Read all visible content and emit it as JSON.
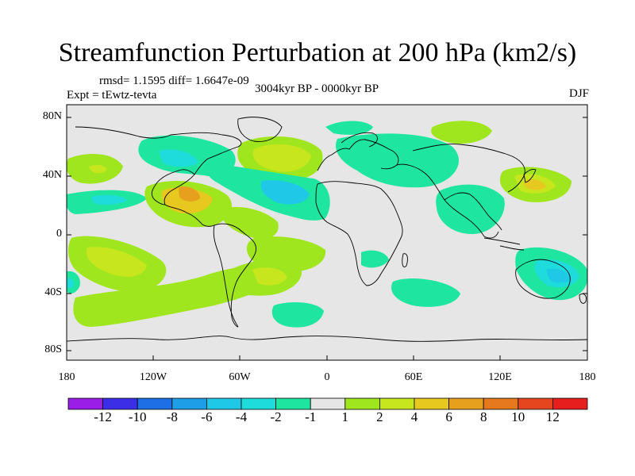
{
  "title": "Streamfunction Perturbation at 200 hPa (km2/s)",
  "stats": "rmsd= 1.1595 diff= 1.6647e-09",
  "experiment": "Expt = tEwtz-tevta",
  "period": "3004kyr BP - 0000kyr BP",
  "season": "DJF",
  "map": {
    "y_labels": [
      "80N",
      "40N",
      "0",
      "40S",
      "80S"
    ],
    "x_labels": [
      "180",
      "120W",
      "60W",
      "0",
      "60E",
      "120E",
      "180"
    ]
  },
  "colorbar": {
    "labels": [
      "-12",
      "-10",
      "-8",
      "-6",
      "-4",
      "-2",
      "-1",
      "1",
      "2",
      "4",
      "6",
      "8",
      "10",
      "12"
    ],
    "colors": [
      "#9a1ee6",
      "#3b2ee6",
      "#1e6ee6",
      "#1e9ee6",
      "#1ec8e6",
      "#1edcdc",
      "#1ee6a0",
      "#e6e6e6",
      "#a0e61e",
      "#c8e61e",
      "#e6c81e",
      "#e6a01e",
      "#e6781e",
      "#e6461e",
      "#e61e1e"
    ]
  },
  "palette": {
    "ocean_bg": "#e6e6e6",
    "neg_light": "#1ee6a0",
    "neg_mid": "#1edcdc",
    "neg_strong": "#1ec8e6",
    "pos_light": "#a0e61e",
    "pos_mid": "#c8e61e",
    "pos_strong": "#e6c81e",
    "pos_peak": "#e6a01e",
    "pos_max": "#e6781e"
  }
}
